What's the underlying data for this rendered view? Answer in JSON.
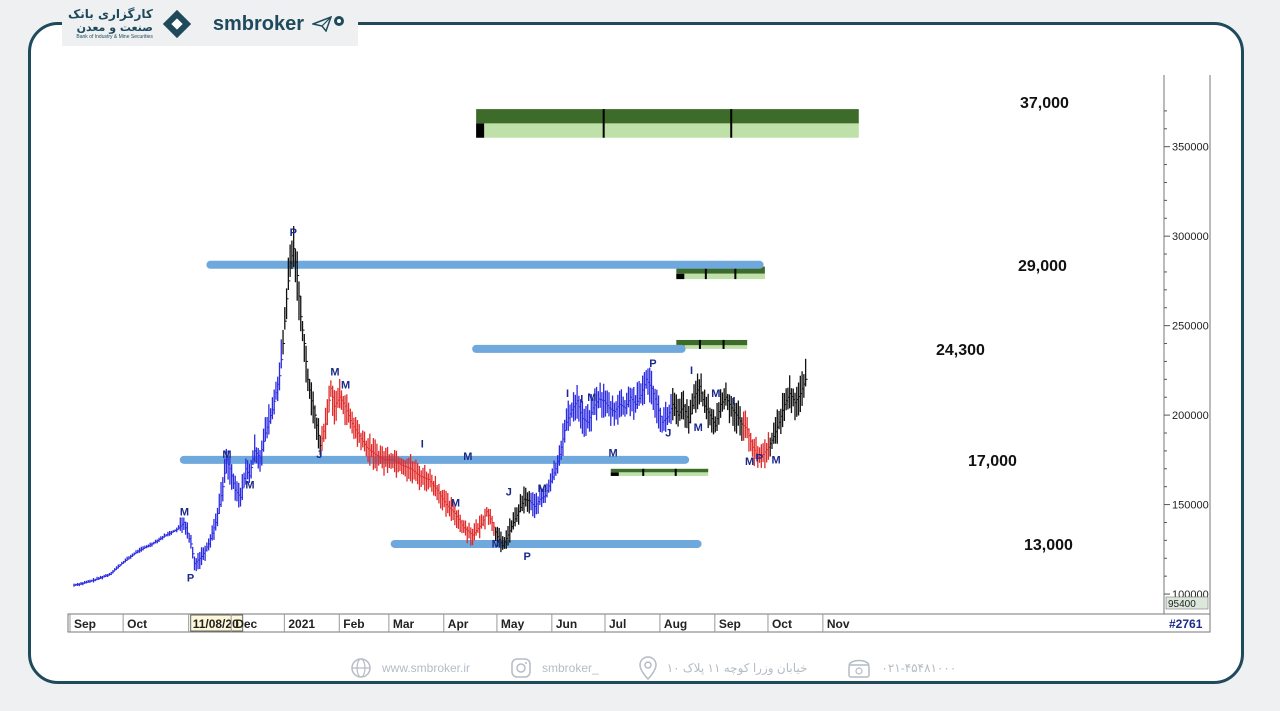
{
  "header": {
    "logo_line1": "کارگزاری بانک",
    "logo_line2": "صنعت و معدن",
    "logo_sub": "Bank of Industry & Mine Securities",
    "brand": "smbroker"
  },
  "footer": {
    "website": "www.smbroker.ir",
    "instagram": "smbroker_",
    "address": "خیابان وزرا کوچه ۱۱ پلاک ۱۰",
    "phone": "۰۲۱-۴۵۴۸۱۰۰۰"
  },
  "chart_data": {
    "type": "line",
    "style": "ohlc-bars",
    "symbol_tag": "#2761",
    "xlabel": "",
    "ylabel": "",
    "ylim": [
      95000,
      380000
    ],
    "y_ticks": [
      {
        "value": 350000,
        "label": "350000"
      },
      {
        "value": 300000,
        "label": "300000"
      },
      {
        "value": 250000,
        "label": "250000"
      },
      {
        "value": 200000,
        "label": "200000"
      },
      {
        "value": 150000,
        "label": "150000"
      },
      {
        "value": 100000,
        "label": "100000"
      }
    ],
    "y_last_label": "95400",
    "x_ticks": [
      {
        "label": "Sep",
        "x": 0
      },
      {
        "label": "Oct",
        "x": 30
      },
      {
        "label": "11/08/20",
        "x": 67,
        "highlight": true
      },
      {
        "label": "Dec",
        "x": 91
      },
      {
        "label": "2021",
        "x": 121
      },
      {
        "label": "Feb",
        "x": 152
      },
      {
        "label": "Mar",
        "x": 180
      },
      {
        "label": "Apr",
        "x": 211
      },
      {
        "label": "May",
        "x": 241
      },
      {
        "label": "Jun",
        "x": 272
      },
      {
        "label": "Jul",
        "x": 302
      },
      {
        "label": "Aug",
        "x": 333
      },
      {
        "label": "Sep",
        "x": 364
      },
      {
        "label": "Oct",
        "x": 394
      },
      {
        "label": "Nov",
        "x": 425
      }
    ],
    "price_path": [
      [
        0,
        105000
      ],
      [
        5,
        106000
      ],
      [
        12,
        108000
      ],
      [
        20,
        111000
      ],
      [
        28,
        118000
      ],
      [
        36,
        124000
      ],
      [
        44,
        128000
      ],
      [
        52,
        133000
      ],
      [
        58,
        136000
      ],
      [
        62,
        140000
      ],
      [
        66,
        128000
      ],
      [
        68,
        117000
      ],
      [
        72,
        121000
      ],
      [
        76,
        128000
      ],
      [
        80,
        140000
      ],
      [
        84,
        160000
      ],
      [
        86,
        175000
      ],
      [
        88,
        170000
      ],
      [
        91,
        158000
      ],
      [
        94,
        154000
      ],
      [
        97,
        170000
      ],
      [
        99,
        166000
      ],
      [
        102,
        180000
      ],
      [
        105,
        176000
      ],
      [
        108,
        190000
      ],
      [
        112,
        203000
      ],
      [
        116,
        222000
      ],
      [
        118,
        240000
      ],
      [
        120,
        265000
      ],
      [
        122,
        285000
      ],
      [
        124,
        293000
      ],
      [
        126,
        278000
      ],
      [
        128,
        255000
      ],
      [
        130,
        240000
      ],
      [
        132,
        220000
      ],
      [
        134,
        208000
      ],
      [
        136,
        200000
      ],
      [
        139,
        183000
      ],
      [
        142,
        195000
      ],
      [
        145,
        215000
      ],
      [
        147,
        205000
      ],
      [
        150,
        210000
      ],
      [
        153,
        205000
      ],
      [
        156,
        197000
      ],
      [
        160,
        190000
      ],
      [
        165,
        182000
      ],
      [
        170,
        178000
      ],
      [
        175,
        175000
      ],
      [
        180,
        175000
      ],
      [
        185,
        172000
      ],
      [
        190,
        170000
      ],
      [
        195,
        166000
      ],
      [
        200,
        164000
      ],
      [
        205,
        158000
      ],
      [
        210,
        150000
      ],
      [
        215,
        145000
      ],
      [
        220,
        137000
      ],
      [
        225,
        133000
      ],
      [
        230,
        139000
      ],
      [
        233,
        146000
      ],
      [
        236,
        140000
      ],
      [
        239,
        132000
      ],
      [
        242,
        127000
      ],
      [
        245,
        133000
      ],
      [
        248,
        140000
      ],
      [
        251,
        146000
      ],
      [
        254,
        153000
      ],
      [
        257,
        152000
      ],
      [
        260,
        149000
      ],
      [
        263,
        153000
      ],
      [
        266,
        155000
      ],
      [
        269,
        163000
      ],
      [
        272,
        170000
      ],
      [
        275,
        182000
      ],
      [
        278,
        196000
      ],
      [
        281,
        203000
      ],
      [
        284,
        208000
      ],
      [
        287,
        198000
      ],
      [
        290,
        196000
      ],
      [
        293,
        204000
      ],
      [
        296,
        209000
      ],
      [
        299,
        208000
      ],
      [
        302,
        204000
      ],
      [
        305,
        202000
      ],
      [
        308,
        206000
      ],
      [
        311,
        204000
      ],
      [
        314,
        210000
      ],
      [
        317,
        206000
      ],
      [
        320,
        211000
      ],
      [
        323,
        220000
      ],
      [
        326,
        215000
      ],
      [
        329,
        206000
      ],
      [
        332,
        196000
      ],
      [
        335,
        199000
      ],
      [
        338,
        206000
      ],
      [
        341,
        200000
      ],
      [
        344,
        205000
      ],
      [
        347,
        196000
      ],
      [
        350,
        210000
      ],
      [
        353,
        216000
      ],
      [
        356,
        205000
      ],
      [
        359,
        200000
      ],
      [
        362,
        194000
      ],
      [
        365,
        206000
      ],
      [
        368,
        210000
      ],
      [
        371,
        204000
      ],
      [
        374,
        200000
      ],
      [
        377,
        195000
      ],
      [
        380,
        192000
      ],
      [
        383,
        182000
      ],
      [
        386,
        177000
      ],
      [
        389,
        178000
      ],
      [
        392,
        182000
      ],
      [
        395,
        188000
      ],
      [
        398,
        196000
      ],
      [
        401,
        206000
      ],
      [
        404,
        212000
      ],
      [
        407,
        207000
      ],
      [
        410,
        212000
      ],
      [
        413,
        220000
      ]
    ],
    "segments": [
      {
        "x0": 0,
        "x1": 117,
        "color": "blue"
      },
      {
        "x0": 117,
        "x1": 139,
        "color": "black"
      },
      {
        "x0": 139,
        "x1": 237,
        "color": "red"
      },
      {
        "x0": 237,
        "x1": 257,
        "color": "black"
      },
      {
        "x0": 257,
        "x1": 337,
        "color": "blue"
      },
      {
        "x0": 337,
        "x1": 377,
        "color": "black"
      },
      {
        "x0": 377,
        "x1": 392,
        "color": "red"
      },
      {
        "x0": 392,
        "x1": 413,
        "color": "black"
      }
    ],
    "pivot_labels": [
      {
        "text": "P",
        "x": 66,
        "y": 107000
      },
      {
        "text": "M",
        "x": 62,
        "y": 144000
      },
      {
        "text": "M",
        "x": 86,
        "y": 176000
      },
      {
        "text": "M",
        "x": 99,
        "y": 159000
      },
      {
        "text": "P",
        "x": 124,
        "y": 300000
      },
      {
        "text": "J",
        "x": 139,
        "y": 176000
      },
      {
        "text": "M",
        "x": 147,
        "y": 222000
      },
      {
        "text": "M",
        "x": 153,
        "y": 215000
      },
      {
        "text": "I",
        "x": 198,
        "y": 182000
      },
      {
        "text": "M",
        "x": 215,
        "y": 149000
      },
      {
        "text": "M",
        "x": 222,
        "y": 175000
      },
      {
        "text": "M",
        "x": 238,
        "y": 126000
      },
      {
        "text": "J",
        "x": 246,
        "y": 155000
      },
      {
        "text": "P",
        "x": 256,
        "y": 119000
      },
      {
        "text": "M",
        "x": 264,
        "y": 157000
      },
      {
        "text": "I",
        "x": 280,
        "y": 210000
      },
      {
        "text": "I",
        "x": 288,
        "y": 207000
      },
      {
        "text": "M",
        "x": 292,
        "y": 208000
      },
      {
        "text": "M",
        "x": 304,
        "y": 177000
      },
      {
        "text": "P",
        "x": 327,
        "y": 227000
      },
      {
        "text": "J",
        "x": 336,
        "y": 188000
      },
      {
        "text": "I",
        "x": 350,
        "y": 223000
      },
      {
        "text": "M",
        "x": 352,
        "y": 191000
      },
      {
        "text": "M",
        "x": 362,
        "y": 210000
      },
      {
        "text": "I",
        "x": 374,
        "y": 206000
      },
      {
        "text": "M",
        "x": 381,
        "y": 172000
      },
      {
        "text": "P",
        "x": 387,
        "y": 174000
      },
      {
        "text": "M",
        "x": 396,
        "y": 173000
      }
    ],
    "levels": [
      {
        "label": "37,000",
        "value": 375000
      },
      {
        "label": "29,000",
        "value": 284000
      },
      {
        "label": "24,300",
        "value": 237000
      },
      {
        "label": "17,000",
        "value": 175000
      },
      {
        "label": "13,000",
        "value": 128000
      }
    ],
    "support_resistance_lines": [
      {
        "x0": 77,
        "x1": 387,
        "value": 284000
      },
      {
        "x0": 227,
        "x1": 343,
        "value": 237000
      },
      {
        "x0": 62,
        "x1": 345,
        "value": 175000
      },
      {
        "x0": 181,
        "x1": 352,
        "value": 128000
      }
    ],
    "zones": [
      {
        "x0": 227,
        "x1": 443,
        "top": 371000,
        "mid": 363000,
        "bottom": 355000
      },
      {
        "x0": 340,
        "x1": 390,
        "top": 283000,
        "mid": 279000,
        "bottom": 276000
      },
      {
        "x0": 340,
        "x1": 380,
        "top": 242000,
        "mid": 239000,
        "bottom": 237000
      },
      {
        "x0": 303,
        "x1": 358,
        "top": 170000,
        "mid": 168000,
        "bottom": 166000
      }
    ],
    "grid": false,
    "legend": "none"
  }
}
